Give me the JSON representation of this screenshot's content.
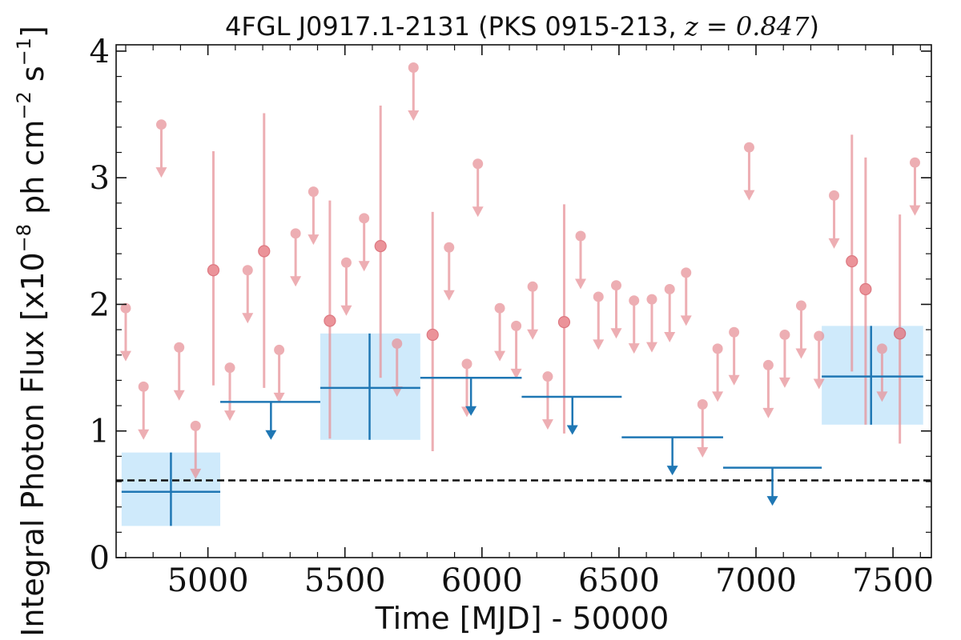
{
  "chart_data": {
    "type": "scatter",
    "title": {
      "prefix": "4FGL J0917.1-2131 (PKS 0915-213, ",
      "redshift": "z = 0.847",
      "suffix": ")"
    },
    "xlabel": "Time [MJD] - 50000",
    "ylabel": {
      "main": "Integral Photon Flux [x10",
      "exp1": "−8",
      "mid": " ph cm",
      "exp2": "−2",
      "mid2": " s",
      "exp3": "−1",
      "end": "]"
    },
    "xlim": [
      4665,
      7640
    ],
    "ylim": [
      0,
      4.05
    ],
    "x_ticks": [
      5000,
      5500,
      6000,
      6500,
      7000,
      7500
    ],
    "x_tick_labels": [
      "5000",
      "5500",
      "6000",
      "6500",
      "7000",
      "7500"
    ],
    "y_ticks": [
      0,
      1,
      2,
      3,
      4
    ],
    "y_tick_labels": [
      "0",
      "1",
      "2",
      "3",
      "4"
    ],
    "reference_level": 0.61,
    "colors": {
      "short_bin": "#e8949a",
      "long_bin": "#1f77b4",
      "long_bin_band": "#cfeafb",
      "reference_line": "#111111"
    },
    "short_bins": {
      "upper_limits": [
        {
          "x": 4700,
          "y": 1.97
        },
        {
          "x": 4765,
          "y": 1.35
        },
        {
          "x": 4830,
          "y": 3.42
        },
        {
          "x": 4895,
          "y": 1.66
        },
        {
          "x": 4955,
          "y": 1.04
        },
        {
          "x": 5080,
          "y": 1.5
        },
        {
          "x": 5145,
          "y": 2.27
        },
        {
          "x": 5260,
          "y": 1.64
        },
        {
          "x": 5320,
          "y": 2.56
        },
        {
          "x": 5385,
          "y": 2.89
        },
        {
          "x": 5505,
          "y": 2.33
        },
        {
          "x": 5570,
          "y": 2.68
        },
        {
          "x": 5690,
          "y": 1.69
        },
        {
          "x": 5750,
          "y": 3.87
        },
        {
          "x": 5880,
          "y": 2.45
        },
        {
          "x": 5945,
          "y": 1.53
        },
        {
          "x": 5985,
          "y": 3.11
        },
        {
          "x": 6065,
          "y": 1.97
        },
        {
          "x": 6125,
          "y": 1.83
        },
        {
          "x": 6185,
          "y": 2.14
        },
        {
          "x": 6240,
          "y": 1.43
        },
        {
          "x": 6360,
          "y": 2.54
        },
        {
          "x": 6425,
          "y": 2.06
        },
        {
          "x": 6490,
          "y": 2.15
        },
        {
          "x": 6555,
          "y": 2.03
        },
        {
          "x": 6620,
          "y": 2.04
        },
        {
          "x": 6685,
          "y": 2.12
        },
        {
          "x": 6745,
          "y": 2.25
        },
        {
          "x": 6805,
          "y": 1.21
        },
        {
          "x": 6860,
          "y": 1.65
        },
        {
          "x": 6920,
          "y": 1.78
        },
        {
          "x": 6975,
          "y": 3.24
        },
        {
          "x": 7045,
          "y": 1.52
        },
        {
          "x": 7105,
          "y": 1.76
        },
        {
          "x": 7165,
          "y": 1.99
        },
        {
          "x": 7230,
          "y": 1.75
        },
        {
          "x": 7285,
          "y": 2.86
        },
        {
          "x": 7460,
          "y": 1.65
        },
        {
          "x": 7580,
          "y": 3.12
        }
      ],
      "detections": [
        {
          "x": 5020,
          "y": 2.27,
          "ylow": 1.36,
          "yhigh": 3.21
        },
        {
          "x": 5205,
          "y": 2.42,
          "ylow": 1.34,
          "yhigh": 3.51
        },
        {
          "x": 5445,
          "y": 1.87,
          "ylow": 0.94,
          "yhigh": 2.82
        },
        {
          "x": 5630,
          "y": 2.46,
          "ylow": 1.42,
          "yhigh": 3.57
        },
        {
          "x": 5820,
          "y": 1.76,
          "ylow": 0.84,
          "yhigh": 2.73
        },
        {
          "x": 6300,
          "y": 1.86,
          "ylow": 0.98,
          "yhigh": 2.79
        },
        {
          "x": 7350,
          "y": 2.34,
          "ylow": 1.47,
          "yhigh": 3.34
        },
        {
          "x": 7400,
          "y": 2.12,
          "ylow": 1.05,
          "yhigh": 3.16
        },
        {
          "x": 7525,
          "y": 1.77,
          "ylow": 0.9,
          "yhigh": 2.71
        }
      ]
    },
    "long_bins": {
      "detections": [
        {
          "x": 4865,
          "xmin": 4685,
          "xmax": 5045,
          "y": 0.52,
          "ylow": 0.25,
          "yhigh": 0.83
        },
        {
          "x": 5590,
          "xmin": 5410,
          "xmax": 5775,
          "y": 1.34,
          "ylow": 0.93,
          "yhigh": 1.77
        },
        {
          "x": 7420,
          "xmin": 7240,
          "xmax": 7610,
          "y": 1.43,
          "ylow": 1.05,
          "yhigh": 1.83
        }
      ],
      "upper_limits": [
        {
          "x": 5230,
          "xmin": 5045,
          "xmax": 5410,
          "y": 1.23
        },
        {
          "x": 5960,
          "xmin": 5775,
          "xmax": 6145,
          "y": 1.42
        },
        {
          "x": 6330,
          "xmin": 6145,
          "xmax": 6510,
          "y": 1.27
        },
        {
          "x": 6695,
          "xmin": 6510,
          "xmax": 6880,
          "y": 0.95
        },
        {
          "x": 7060,
          "xmin": 6880,
          "xmax": 7240,
          "y": 0.71
        }
      ]
    }
  }
}
